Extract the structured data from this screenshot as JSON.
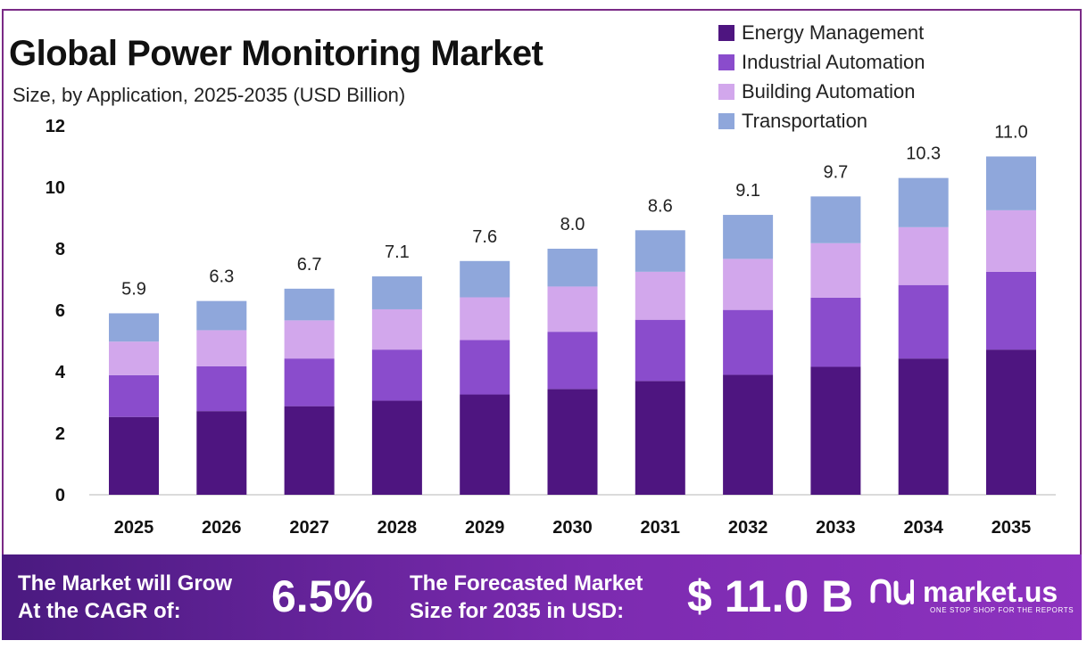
{
  "header": {
    "title": "Global Power Monitoring Market",
    "subtitle": "Size, by Application, 2025-2035 (USD Billion)"
  },
  "chart_data": {
    "type": "bar",
    "stacked": true,
    "categories": [
      "2025",
      "2026",
      "2027",
      "2028",
      "2029",
      "2030",
      "2031",
      "2032",
      "2033",
      "2034",
      "2035"
    ],
    "series": [
      {
        "name": "Energy Management",
        "color": "#4e1580",
        "values": [
          2.53,
          2.72,
          2.88,
          3.06,
          3.26,
          3.44,
          3.7,
          3.9,
          4.16,
          4.43,
          4.72
        ]
      },
      {
        "name": "Industrial Automation",
        "color": "#8a4ccc",
        "values": [
          1.36,
          1.46,
          1.55,
          1.66,
          1.77,
          1.86,
          1.99,
          2.11,
          2.25,
          2.39,
          2.53
        ]
      },
      {
        "name": "Building Automation",
        "color": "#d2a7ec",
        "values": [
          1.09,
          1.17,
          1.24,
          1.31,
          1.39,
          1.47,
          1.56,
          1.66,
          1.77,
          1.88,
          2.0
        ]
      },
      {
        "name": "Transportation",
        "color": "#8fa7db",
        "values": [
          0.92,
          0.95,
          1.03,
          1.07,
          1.18,
          1.23,
          1.35,
          1.43,
          1.52,
          1.6,
          1.75
        ]
      }
    ],
    "totals": [
      "5.9",
      "6.3",
      "6.7",
      "7.1",
      "7.6",
      "8.0",
      "8.6",
      "9.1",
      "9.7",
      "10.3",
      "11.0"
    ],
    "yticks": [
      "0",
      "2",
      "4",
      "6",
      "8",
      "10",
      "12"
    ],
    "ylim": [
      0,
      12
    ],
    "grid": false,
    "legend": "top-right",
    "xlabel": "",
    "ylabel": ""
  },
  "banner": {
    "cagr_text_line1": "The Market will Grow",
    "cagr_text_line2": "At the CAGR of:",
    "cagr_value": "6.5%",
    "forecast_text_line1": "The Forecasted Market",
    "forecast_text_line2": "Size for 2035 in USD:",
    "forecast_value": "$ 11.0 B",
    "brand_name": "market.us",
    "brand_tagline": "ONE STOP SHOP FOR THE REPORTS"
  }
}
